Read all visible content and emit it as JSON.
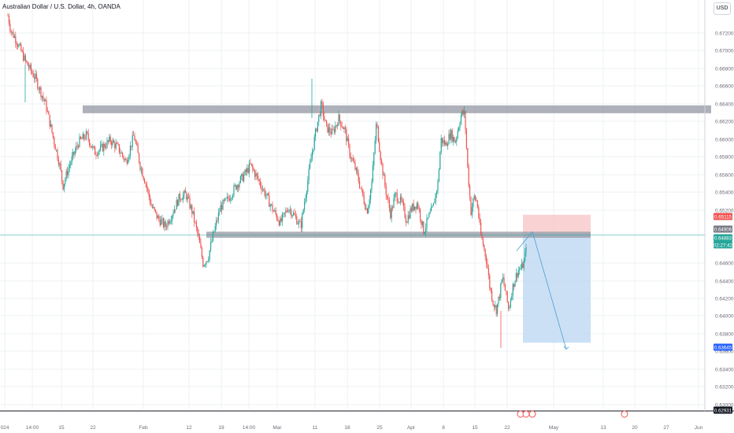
{
  "header": {
    "title": "Australian Dollar / U.S. Dollar, 4h, OANDA",
    "currency": "USD"
  },
  "colors": {
    "up": "#26a69a",
    "down": "#ef5350",
    "grid": "#eef0f3",
    "zone": "#9a9ea8",
    "profit": "#bbd6f2",
    "stop": "#f7c4c4",
    "price_line": "#26a69a",
    "axis_line": "#131722"
  },
  "chart_data": {
    "type": "candlestick",
    "y_axis": {
      "range": [
        0.6288,
        0.6758
      ],
      "ticks": [
        "0.67200",
        "0.67000",
        "0.66800",
        "0.66600",
        "0.66400",
        "0.66200",
        "0.66000",
        "0.65800",
        "0.65600",
        "0.65400",
        "0.65200",
        "0.64600",
        "0.64400",
        "0.64200",
        "0.64000",
        "0.63800",
        "0.63600",
        "0.63400",
        "0.63200",
        "0.63000"
      ]
    },
    "x_axis": {
      "ticks": [
        "024",
        "14:00",
        "15",
        "22",
        "Feb",
        "12",
        "19",
        "14:00",
        "Mar",
        "11",
        "18",
        "25",
        "Apr",
        "8",
        "15",
        "22",
        "May",
        "13",
        "20",
        "27",
        "Jun"
      ]
    },
    "price_labels": [
      {
        "value": "0.65115",
        "role": "stop-loss",
        "color": "#ef5350"
      },
      {
        "value": "0.64906",
        "role": "entry",
        "color": "#787b86"
      },
      {
        "value": "0.64883",
        "role": "last-price",
        "color": "#26a69a"
      },
      {
        "value": "02:27:42",
        "role": "countdown",
        "color": "#26a69a"
      },
      {
        "value": "0.63645",
        "role": "take-profit",
        "color": "#2962ff"
      },
      {
        "value": "0.62931",
        "role": "lowest-visible",
        "color": "#131722"
      }
    ],
    "zones": [
      {
        "name": "resistance",
        "low": 0.6628,
        "high": 0.6637
      },
      {
        "name": "support",
        "low": 0.6485,
        "high": 0.6492
      }
    ],
    "position": {
      "direction": "short",
      "entry": 0.64906,
      "stop": 0.65115,
      "target": 0.63645
    },
    "projection": {
      "from": 0.6492,
      "to": 0.6357
    },
    "last_price": 0.64883,
    "anchors": [
      {
        "t": 0,
        "p": 0.674
      },
      {
        "t": 4,
        "p": 0.6722
      },
      {
        "t": 9,
        "p": 0.6715
      },
      {
        "t": 14,
        "p": 0.6705
      },
      {
        "t": 22,
        "p": 0.6688
      },
      {
        "t": 35,
        "p": 0.6668
      },
      {
        "t": 48,
        "p": 0.6638
      },
      {
        "t": 58,
        "p": 0.6598
      },
      {
        "t": 65,
        "p": 0.6572
      },
      {
        "t": 70,
        "p": 0.6545
      },
      {
        "t": 78,
        "p": 0.6568
      },
      {
        "t": 90,
        "p": 0.6595
      },
      {
        "t": 100,
        "p": 0.6603
      },
      {
        "t": 110,
        "p": 0.6583
      },
      {
        "t": 118,
        "p": 0.6587
      },
      {
        "t": 130,
        "p": 0.6597
      },
      {
        "t": 140,
        "p": 0.6588
      },
      {
        "t": 150,
        "p": 0.6572
      },
      {
        "t": 160,
        "p": 0.6603
      },
      {
        "t": 168,
        "p": 0.6568
      },
      {
        "t": 175,
        "p": 0.6548
      },
      {
        "t": 182,
        "p": 0.6522
      },
      {
        "t": 190,
        "p": 0.6508
      },
      {
        "t": 200,
        "p": 0.6498
      },
      {
        "t": 208,
        "p": 0.6512
      },
      {
        "t": 218,
        "p": 0.6532
      },
      {
        "t": 226,
        "p": 0.6535
      },
      {
        "t": 234,
        "p": 0.6515
      },
      {
        "t": 242,
        "p": 0.6485
      },
      {
        "t": 248,
        "p": 0.6455
      },
      {
        "t": 254,
        "p": 0.6462
      },
      {
        "t": 262,
        "p": 0.6493
      },
      {
        "t": 270,
        "p": 0.652
      },
      {
        "t": 280,
        "p": 0.653
      },
      {
        "t": 290,
        "p": 0.6545
      },
      {
        "t": 300,
        "p": 0.6557
      },
      {
        "t": 308,
        "p": 0.6568
      },
      {
        "t": 316,
        "p": 0.6555
      },
      {
        "t": 326,
        "p": 0.6537
      },
      {
        "t": 336,
        "p": 0.6518
      },
      {
        "t": 346,
        "p": 0.6502
      },
      {
        "t": 356,
        "p": 0.652
      },
      {
        "t": 364,
        "p": 0.651
      },
      {
        "t": 372,
        "p": 0.6498
      },
      {
        "t": 378,
        "p": 0.6535
      },
      {
        "t": 386,
        "p": 0.6582
      },
      {
        "t": 392,
        "p": 0.6612
      },
      {
        "t": 398,
        "p": 0.6638
      },
      {
        "t": 404,
        "p": 0.6612
      },
      {
        "t": 412,
        "p": 0.6605
      },
      {
        "t": 420,
        "p": 0.6622
      },
      {
        "t": 428,
        "p": 0.6608
      },
      {
        "t": 434,
        "p": 0.6582
      },
      {
        "t": 442,
        "p": 0.6562
      },
      {
        "t": 450,
        "p": 0.6535
      },
      {
        "t": 456,
        "p": 0.6515
      },
      {
        "t": 462,
        "p": 0.6548
      },
      {
        "t": 468,
        "p": 0.6618
      },
      {
        "t": 474,
        "p": 0.6572
      },
      {
        "t": 480,
        "p": 0.6538
      },
      {
        "t": 486,
        "p": 0.6512
      },
      {
        "t": 492,
        "p": 0.6535
      },
      {
        "t": 500,
        "p": 0.6525
      },
      {
        "t": 506,
        "p": 0.6505
      },
      {
        "t": 512,
        "p": 0.6518
      },
      {
        "t": 520,
        "p": 0.6525
      },
      {
        "t": 528,
        "p": 0.6492
      },
      {
        "t": 534,
        "p": 0.6508
      },
      {
        "t": 540,
        "p": 0.652
      },
      {
        "t": 546,
        "p": 0.6548
      },
      {
        "t": 550,
        "p": 0.6598
      },
      {
        "t": 556,
        "p": 0.6592
      },
      {
        "t": 562,
        "p": 0.6605
      },
      {
        "t": 568,
        "p": 0.6595
      },
      {
        "t": 572,
        "p": 0.6612
      },
      {
        "t": 576,
        "p": 0.6628
      },
      {
        "t": 580,
        "p": 0.6627
      },
      {
        "t": 584,
        "p": 0.6562
      },
      {
        "t": 588,
        "p": 0.6515
      },
      {
        "t": 592,
        "p": 0.6532
      },
      {
        "t": 596,
        "p": 0.6525
      },
      {
        "t": 600,
        "p": 0.649
      },
      {
        "t": 604,
        "p": 0.6475
      },
      {
        "t": 608,
        "p": 0.6458
      },
      {
        "t": 612,
        "p": 0.6428
      },
      {
        "t": 616,
        "p": 0.6412
      },
      {
        "t": 620,
        "p": 0.6402
      },
      {
        "t": 624,
        "p": 0.6418
      },
      {
        "t": 628,
        "p": 0.644
      },
      {
        "t": 632,
        "p": 0.6422
      },
      {
        "t": 636,
        "p": 0.6402
      },
      {
        "t": 640,
        "p": 0.6425
      },
      {
        "t": 644,
        "p": 0.6438
      },
      {
        "t": 648,
        "p": 0.6448
      },
      {
        "t": 652,
        "p": 0.645
      },
      {
        "t": 656,
        "p": 0.6458
      },
      {
        "t": 659,
        "p": 0.64883
      }
    ]
  }
}
